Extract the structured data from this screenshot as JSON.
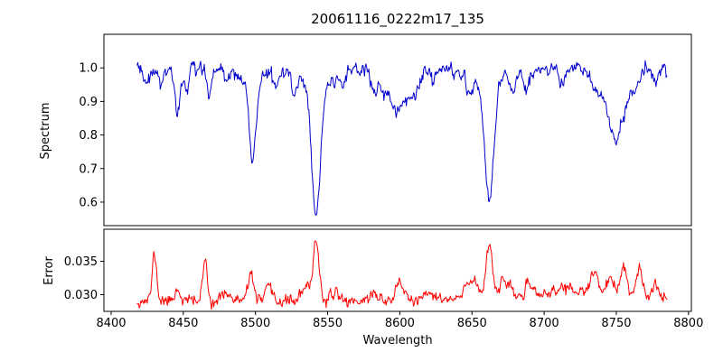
{
  "chart_data": [
    {
      "type": "line",
      "panel": "spectrum",
      "title": "20061116_0222m17_135",
      "ylabel": "Spectrum",
      "color": "#0000cc",
      "line_width": 1,
      "xlim": [
        8395,
        8802
      ],
      "ylim": [
        0.53,
        1.1
      ],
      "yticks": [
        0.6,
        0.7,
        0.8,
        0.9,
        1.0
      ],
      "ytick_labels": [
        "0.6",
        "0.7",
        "0.8",
        "0.9",
        "1.0"
      ],
      "xticks": [
        8400,
        8450,
        8500,
        8550,
        8600,
        8650,
        8700,
        8750,
        8800
      ],
      "xtick_labels": [
        "8400",
        "8450",
        "8500",
        "8550",
        "8600",
        "8650",
        "8700",
        "8750",
        "8800"
      ],
      "x_range": [
        8418,
        8785
      ],
      "x_step": 0.5,
      "continuum": 1.0,
      "noise_sigma": 0.012,
      "noise_ar": 0.45,
      "seed": 3,
      "absorption_lines": [
        {
          "center": 8424,
          "depth": 0.05,
          "width": 1.5
        },
        {
          "center": 8434,
          "depth": 0.045,
          "width": 1.5
        },
        {
          "center": 8446,
          "depth": 0.14,
          "width": 1.8
        },
        {
          "center": 8452,
          "depth": 0.05,
          "width": 1.5
        },
        {
          "center": 8468,
          "depth": 0.08,
          "width": 1.8
        },
        {
          "center": 8480,
          "depth": 0.04,
          "width": 1.5
        },
        {
          "center": 8498,
          "depth": 0.24,
          "width": 2.4
        },
        {
          "center": 8498,
          "depth": 0.03,
          "width": 9
        },
        {
          "center": 8514,
          "depth": 0.05,
          "width": 1.6
        },
        {
          "center": 8527,
          "depth": 0.04,
          "width": 1.6
        },
        {
          "center": 8542,
          "depth": 0.4,
          "width": 3.0
        },
        {
          "center": 8542,
          "depth": 0.045,
          "width": 14
        },
        {
          "center": 8560,
          "depth": 0.04,
          "width": 2
        },
        {
          "center": 8582,
          "depth": 0.05,
          "width": 2.5
        },
        {
          "center": 8598,
          "depth": 0.12,
          "width": 8
        },
        {
          "center": 8611,
          "depth": 0.05,
          "width": 3
        },
        {
          "center": 8623,
          "depth": 0.04,
          "width": 2
        },
        {
          "center": 8648,
          "depth": 0.05,
          "width": 2.5
        },
        {
          "center": 8662,
          "depth": 0.36,
          "width": 3.2
        },
        {
          "center": 8662,
          "depth": 0.04,
          "width": 12
        },
        {
          "center": 8679,
          "depth": 0.04,
          "width": 2
        },
        {
          "center": 8688,
          "depth": 0.06,
          "width": 2.5
        },
        {
          "center": 8713,
          "depth": 0.045,
          "width": 2.5
        },
        {
          "center": 8736,
          "depth": 0.06,
          "width": 3.5
        },
        {
          "center": 8750,
          "depth": 0.21,
          "width": 6
        },
        {
          "center": 8763,
          "depth": 0.05,
          "width": 2.5
        },
        {
          "center": 8776,
          "depth": 0.04,
          "width": 2
        }
      ]
    },
    {
      "type": "line",
      "panel": "error",
      "ylabel": "Error",
      "xlabel": "Wavelength",
      "color": "#ff0000",
      "line_width": 1,
      "xlim": [
        8395,
        8802
      ],
      "ylim": [
        0.0275,
        0.0398
      ],
      "yticks": [
        0.03,
        0.035
      ],
      "ytick_labels": [
        "0.030",
        "0.035"
      ],
      "xticks": [
        8400,
        8450,
        8500,
        8550,
        8600,
        8650,
        8700,
        8750,
        8800
      ],
      "xtick_labels": [
        "8400",
        "8450",
        "8500",
        "8550",
        "8600",
        "8650",
        "8700",
        "8750",
        "8800"
      ],
      "x_range": [
        8418,
        8785
      ],
      "x_step": 0.5,
      "baseline": 0.0291,
      "noise_sigma": 0.00045,
      "noise_ar": 0.4,
      "seed": 11,
      "peaks": [
        {
          "center": 8430,
          "amp": 0.007,
          "width": 1.5
        },
        {
          "center": 8446,
          "amp": 0.0018,
          "width": 1.8
        },
        {
          "center": 8465,
          "amp": 0.006,
          "width": 1.5
        },
        {
          "center": 8480,
          "amp": 0.0015,
          "width": 2
        },
        {
          "center": 8497,
          "amp": 0.0042,
          "width": 1.8
        },
        {
          "center": 8509,
          "amp": 0.0018,
          "width": 2
        },
        {
          "center": 8535,
          "amp": 0.0018,
          "width": 3
        },
        {
          "center": 8542,
          "amp": 0.0093,
          "width": 2.0
        },
        {
          "center": 8556,
          "amp": 0.0015,
          "width": 2
        },
        {
          "center": 8582,
          "amp": 0.0012,
          "width": 2.5
        },
        {
          "center": 8600,
          "amp": 0.0026,
          "width": 3
        },
        {
          "center": 8622,
          "amp": 0.0012,
          "width": 2.5
        },
        {
          "center": 8650,
          "amp": 0.003,
          "width": 4
        },
        {
          "center": 8662,
          "amp": 0.0082,
          "width": 2.2
        },
        {
          "center": 8672,
          "amp": 0.0025,
          "width": 3
        },
        {
          "center": 8690,
          "amp": 0.001,
          "width": 3
        },
        {
          "center": 8715,
          "amp": 0.001,
          "width": 4
        },
        {
          "center": 8720,
          "amp": 0.0012,
          "width": 40
        },
        {
          "center": 8735,
          "amp": 0.0032,
          "width": 2.5
        },
        {
          "center": 8745,
          "amp": 0.002,
          "width": 2.5
        },
        {
          "center": 8755,
          "amp": 0.0042,
          "width": 2.2
        },
        {
          "center": 8766,
          "amp": 0.0038,
          "width": 2.0
        },
        {
          "center": 8777,
          "amp": 0.0028,
          "width": 1.6
        }
      ]
    }
  ]
}
